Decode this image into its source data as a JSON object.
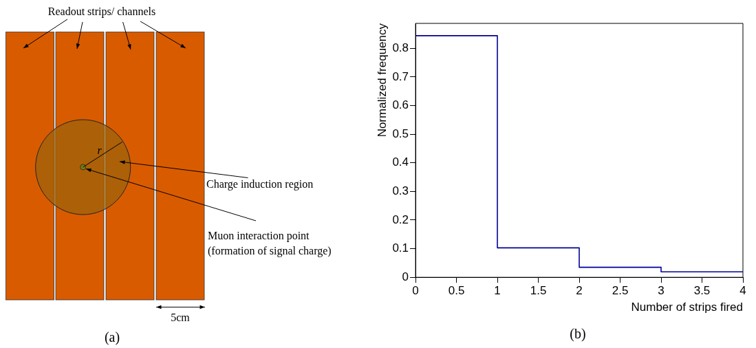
{
  "chart_data": [
    {
      "type": "other",
      "title": "Readout strips/ channels",
      "annotations": [
        "r",
        "Charge induction region",
        "Muon interaction point\n(formation of signal charge)",
        "5cm",
        "(a)"
      ]
    },
    {
      "type": "histogram",
      "xlabel": "Number of strips fired",
      "ylabel": "Normalized frequency",
      "bins": [
        0,
        1,
        2,
        3,
        4
      ],
      "values": [
        0.844,
        0.103,
        0.035,
        0.019
      ],
      "color": "#000099",
      "xlim": [
        0,
        4
      ],
      "xticks": [
        0,
        0.5,
        1,
        1.5,
        2,
        2.5,
        3,
        3.5,
        4
      ],
      "ylim": [
        0,
        0.887
      ],
      "yticks": [
        0,
        0.1,
        0.2,
        0.3,
        0.4,
        0.5,
        0.6,
        0.7,
        0.8
      ],
      "annotations": [
        "(b)"
      ]
    }
  ]
}
